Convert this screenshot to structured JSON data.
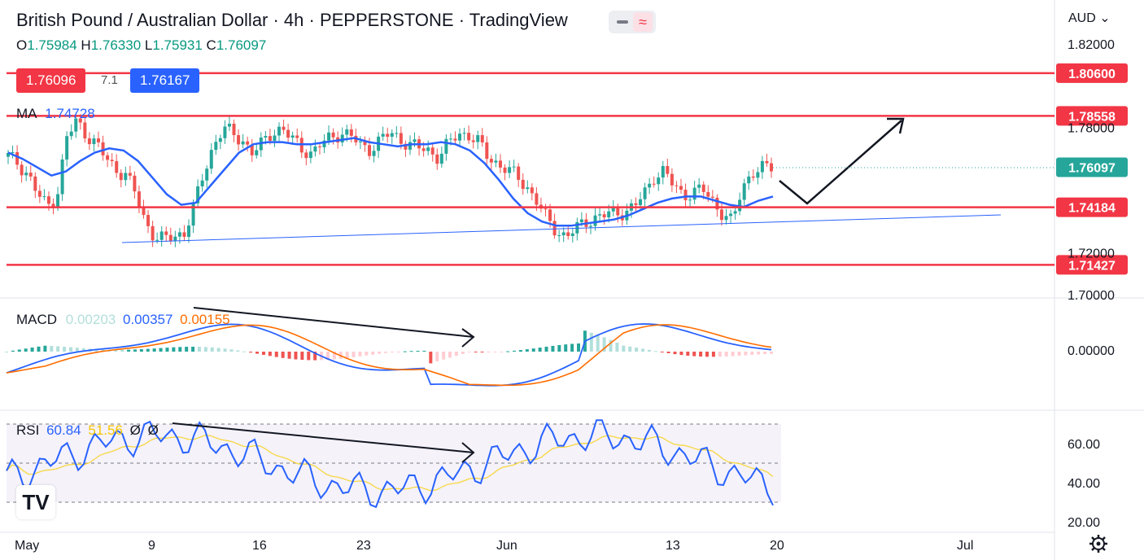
{
  "header": {
    "title": "British Pound / Australian Dollar · 4h · PEPPERSTONE · TradingView",
    "ohlc": {
      "o_label": "O",
      "o": "1.75984",
      "h_label": "H",
      "h": "1.76330",
      "l_label": "L",
      "l": "1.75931",
      "c_label": "C",
      "c": "1.76097"
    },
    "bid": "1.76096",
    "spread": "7.1",
    "ask": "1.76167",
    "currency": "AUD"
  },
  "colors": {
    "up": "#26a69a",
    "down": "#ef5350",
    "ma": "#2962ff",
    "level": "#f23645",
    "macd": "#2962ff",
    "signal": "#ff6d00",
    "rsi": "#2962ff",
    "rsi_ma": "#f7d740"
  },
  "chart_data": [
    {
      "type": "candlestick",
      "ylim": [
        1.695,
        1.835
      ],
      "x_ticks": [
        "May",
        "9",
        "16",
        "23",
        "Jun",
        "13",
        "20",
        "Jul"
      ],
      "y_ticks": [
        "1.82000",
        "1.78000",
        "1.72000",
        "1.70000"
      ],
      "horizontal_levels": [
        "1.80600",
        "1.78558",
        "1.74184",
        "1.71427"
      ],
      "last_price": "1.76097",
      "ma": {
        "label": "MA",
        "value": "1.74728"
      },
      "close_path": [
        1.766,
        1.763,
        1.758,
        1.748,
        1.742,
        1.748,
        1.775,
        1.783,
        1.777,
        1.772,
        1.765,
        1.76,
        1.758,
        1.748,
        1.735,
        1.728,
        1.726,
        1.728,
        1.73,
        1.742,
        1.758,
        1.772,
        1.78,
        1.776,
        1.774,
        1.768,
        1.772,
        1.778,
        1.78,
        1.774,
        1.77,
        1.768,
        1.772,
        1.775,
        1.778,
        1.776,
        1.771,
        1.77,
        1.774,
        1.777,
        1.775,
        1.772,
        1.77,
        1.769,
        1.766,
        1.772,
        1.777,
        1.777,
        1.773,
        1.766,
        1.763,
        1.76,
        1.756,
        1.752,
        1.745,
        1.736,
        1.731,
        1.728,
        1.731,
        1.735,
        1.737,
        1.738,
        1.739,
        1.74,
        1.742,
        1.748,
        1.757,
        1.759,
        1.752,
        1.748,
        1.749,
        1.75,
        1.745,
        1.739,
        1.734,
        1.751,
        1.759,
        1.76,
        1.761
      ],
      "ma_path": [
        1.768,
        1.765,
        1.761,
        1.757,
        1.759,
        1.764,
        1.768,
        1.77,
        1.769,
        1.764,
        1.756,
        1.748,
        1.743,
        1.744,
        1.752,
        1.76,
        1.768,
        1.772,
        1.773,
        1.773,
        1.772,
        1.772,
        1.773,
        1.774,
        1.775,
        1.773,
        1.772,
        1.771,
        1.772,
        1.772,
        1.773,
        1.772,
        1.769,
        1.763,
        1.755,
        1.746,
        1.739,
        1.735,
        1.733,
        1.733,
        1.734,
        1.735,
        1.736,
        1.738,
        1.741,
        1.744,
        1.746,
        1.747,
        1.747,
        1.745,
        1.743,
        1.742,
        1.745,
        1.747
      ]
    },
    {
      "type": "line",
      "name": "MACD",
      "values_label": [
        "0.00203",
        "0.00357",
        "0.00155"
      ],
      "y_ticks": [
        "0.00000"
      ]
    },
    {
      "type": "line",
      "name": "RSI",
      "values_label": [
        "60.84",
        "51.56",
        "Ø",
        "Ø"
      ],
      "y_ticks": [
        "60.00",
        "40.00",
        "20.00"
      ]
    }
  ],
  "time_axis_icon": "settings-icon",
  "logo": "TV"
}
